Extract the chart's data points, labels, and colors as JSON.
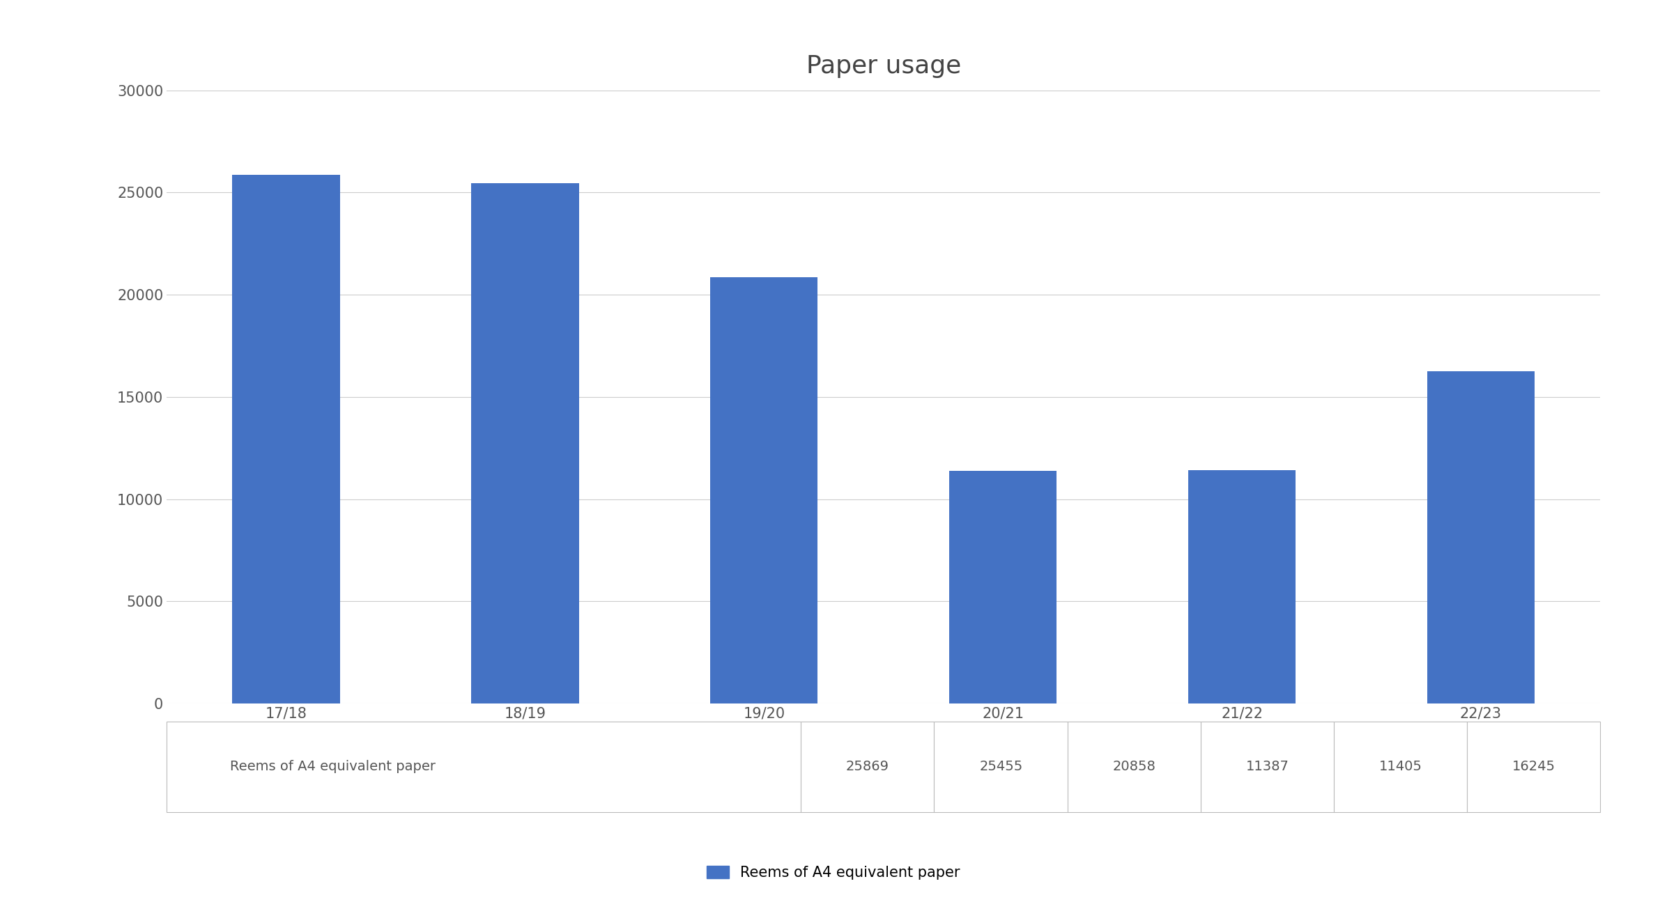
{
  "title": "Paper usage",
  "categories": [
    "17/18",
    "18/19",
    "19/20",
    "20/21",
    "21/22",
    "22/23"
  ],
  "values": [
    25869,
    25455,
    20858,
    11387,
    11405,
    16245
  ],
  "bar_color": "#4472C4",
  "ylim": [
    0,
    30000
  ],
  "yticks": [
    0,
    5000,
    10000,
    15000,
    20000,
    25000,
    30000
  ],
  "title_fontsize": 26,
  "tick_fontsize": 15,
  "legend_label": "Reems of A4 equivalent paper",
  "table_row_label": "Reems of A4 equivalent paper",
  "background_color": "#ffffff",
  "grid_color": "#cccccc",
  "bar_width": 0.45
}
